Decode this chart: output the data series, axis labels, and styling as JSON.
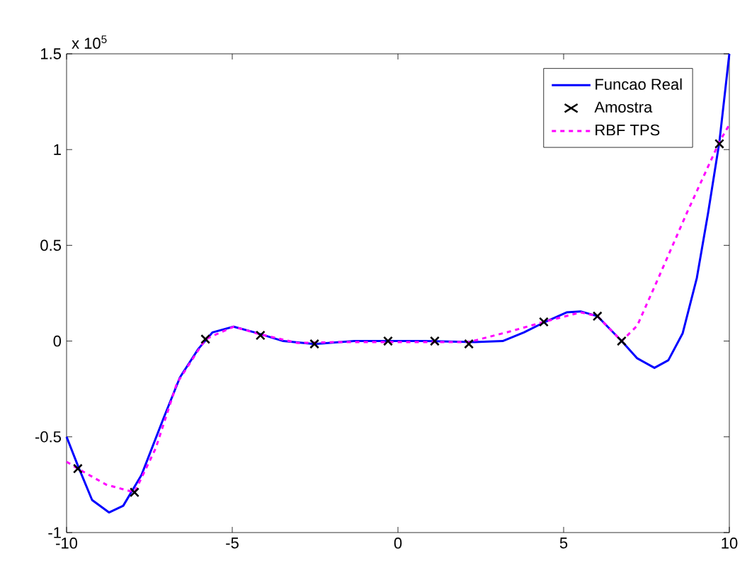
{
  "chart_data": {
    "type": "line",
    "xlim": [
      -10,
      10
    ],
    "xticks": [
      -10,
      -5,
      0,
      5,
      10
    ],
    "ylim": [
      -1,
      1.5
    ],
    "yticks": [
      -1,
      -0.5,
      0,
      0.5,
      1,
      1.5
    ],
    "annotations": [
      "x 10$^{5}$"
    ],
    "legend": "top right",
    "grid": false,
    "series": [
      {
        "name": "Funcao Real",
        "color": "#0000ff",
        "line_style": "solid",
        "marker": "none",
        "x": [
          -10,
          -9.66,
          -9.23,
          -8.72,
          -8.29,
          -7.74,
          -7.09,
          -6.58,
          -6.02,
          -5.6,
          -4.96,
          -4.32,
          -3.46,
          -2.52,
          -1.32,
          0.81,
          2.31,
          3.16,
          3.8,
          4.44,
          5.09,
          5.51,
          6.02,
          6.75,
          7.22,
          7.74,
          8.16,
          8.59,
          9.02,
          9.36,
          9.7,
          10
        ],
        "values": [
          -0.5,
          -0.65,
          -0.83,
          -0.895,
          -0.86,
          -0.7,
          -0.41,
          -0.19,
          -0.04,
          0.045,
          0.075,
          0.045,
          0,
          -0.015,
          0,
          0,
          -0.005,
          0,
          0.045,
          0.1,
          0.15,
          0.155,
          0.13,
          0,
          -0.09,
          -0.14,
          -0.1,
          0.04,
          0.33,
          0.67,
          1.04,
          1.5
        ]
      },
      {
        "name": "Amostra",
        "type": "scatter",
        "color": "#000000",
        "marker": "cross",
        "x": [
          -9.66,
          -7.95,
          -5.81,
          -4.15,
          -2.52,
          -0.3,
          1.11,
          2.14,
          4.4,
          6.02,
          6.75,
          9.7
        ],
        "values": [
          -0.666,
          -0.79,
          0.01,
          0.03,
          -0.015,
          0,
          0,
          -0.015,
          0.1,
          0.13,
          0,
          1.03
        ]
      },
      {
        "name": "RBF TPS",
        "color": "#ff00ff",
        "line_style": "dashed",
        "marker": "none",
        "x": [
          -10,
          -9.66,
          -8.8,
          -7.95,
          -7.31,
          -6.67,
          -5.81,
          -4.96,
          -4.15,
          -3.03,
          -1.75,
          2.14,
          3.38,
          4.4,
          5.51,
          6.02,
          6.75,
          7.22,
          7.86,
          8.72,
          9.7,
          10
        ],
        "values": [
          -0.63,
          -0.666,
          -0.75,
          -0.79,
          -0.56,
          -0.22,
          0.01,
          0.075,
          0.035,
          -0.01,
          -0.005,
          -0.005,
          0.05,
          0.1,
          0.15,
          0.13,
          0,
          0.08,
          0.33,
          0.67,
          1.04,
          1.13
        ]
      }
    ]
  }
}
